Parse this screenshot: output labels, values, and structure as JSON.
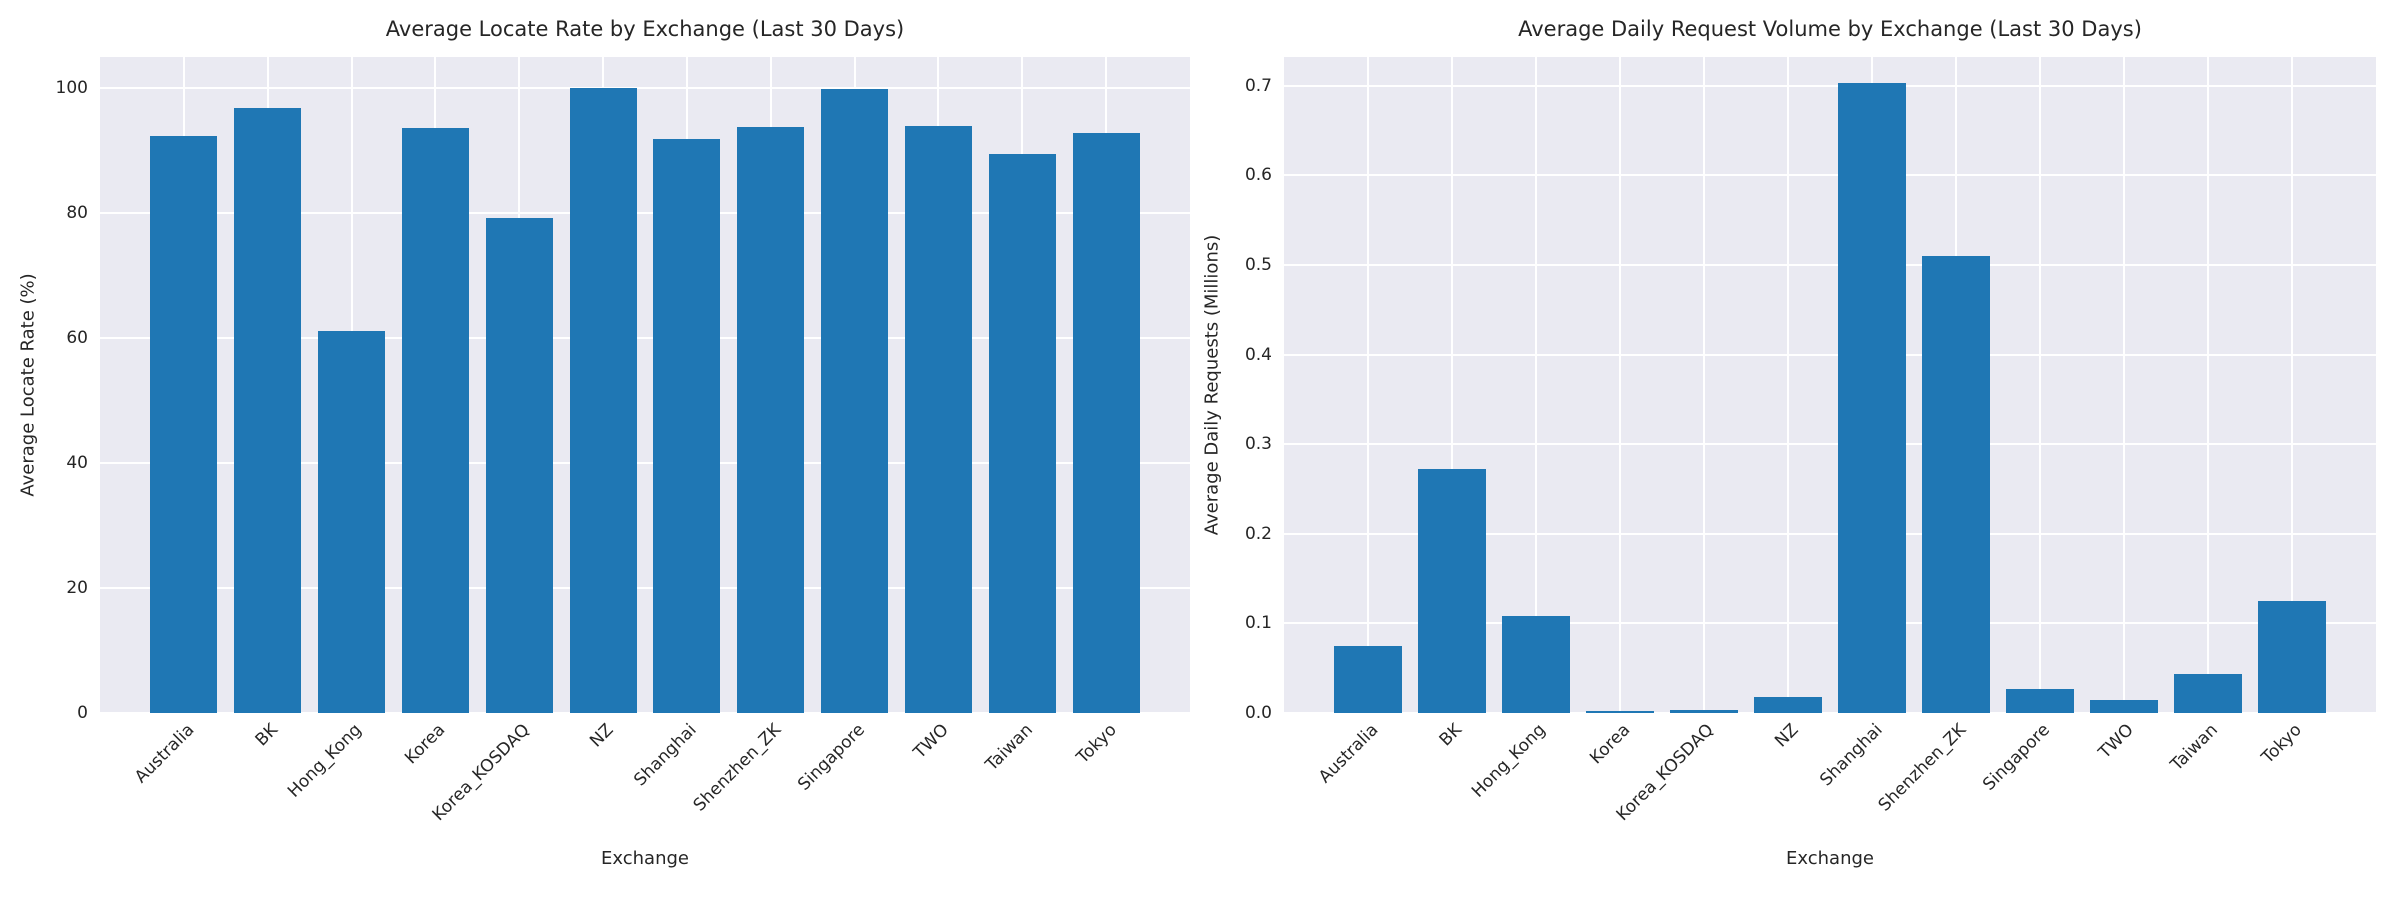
{
  "figure": {
    "background": "#ffffff",
    "axes_background": "#eaeaf2",
    "grid_color": "#ffffff",
    "bar_color": "#1f77b4",
    "text_color": "#262626"
  },
  "chart_data": [
    {
      "type": "bar",
      "title": "Average Locate Rate by Exchange (Last 30 Days)",
      "xlabel": "Exchange",
      "ylabel": "Average Locate Rate (%)",
      "categories": [
        "Australia",
        "BK",
        "Hong_Kong",
        "Korea",
        "Korea_KOSDAQ",
        "NZ",
        "Shanghai",
        "Shenzhen_ZK",
        "Singapore",
        "TWO",
        "Taiwan",
        "Tokyo"
      ],
      "values": [
        92.4,
        96.8,
        61.2,
        93.7,
        79.3,
        100.0,
        91.9,
        93.8,
        99.9,
        94.0,
        89.5,
        92.9
      ],
      "yticks": [
        0,
        20,
        40,
        60,
        80,
        100
      ],
      "ytick_labels": [
        "0",
        "20",
        "40",
        "60",
        "80",
        "100"
      ],
      "ylim": [
        0,
        105
      ],
      "grid": true,
      "legend": "none",
      "tick_rotation": 45
    },
    {
      "type": "bar",
      "title": "Average Daily Request Volume by Exchange (Last 30 Days)",
      "xlabel": "Exchange",
      "ylabel": "Average Daily Requests (Millions)",
      "categories": [
        "Australia",
        "BK",
        "Hong_Kong",
        "Korea",
        "Korea_KOSDAQ",
        "NZ",
        "Shanghai",
        "Shenzhen_ZK",
        "Singapore",
        "TWO",
        "Taiwan",
        "Tokyo"
      ],
      "values": [
        0.075,
        0.272,
        0.108,
        0.002,
        0.003,
        0.018,
        0.703,
        0.51,
        0.027,
        0.015,
        0.043,
        0.125
      ],
      "yticks": [
        0.0,
        0.1,
        0.2,
        0.3,
        0.4,
        0.5,
        0.6,
        0.7
      ],
      "ytick_labels": [
        "0.0",
        "0.1",
        "0.2",
        "0.3",
        "0.4",
        "0.5",
        "0.6",
        "0.7"
      ],
      "ylim": [
        0,
        0.732
      ],
      "grid": true,
      "legend": "none",
      "tick_rotation": 45
    }
  ]
}
